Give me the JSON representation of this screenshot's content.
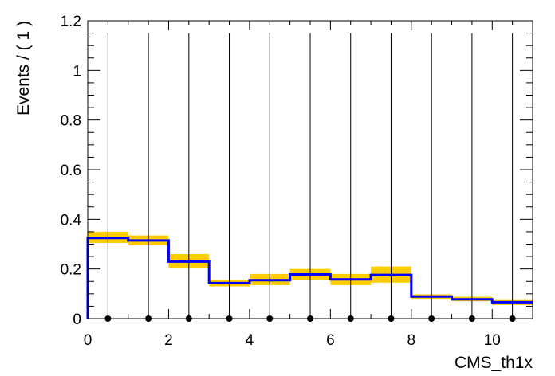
{
  "chart_data": {
    "type": "bar",
    "title": "",
    "xlabel": "CMS_th1x",
    "ylabel": "Events / ( 1 )",
    "xlim": [
      0,
      11
    ],
    "ylim": [
      0,
      1.2
    ],
    "x_ticks": [
      "0",
      "2",
      "4",
      "6",
      "8",
      "10"
    ],
    "y_ticks": [
      "0",
      "0.2",
      "0.4",
      "0.6",
      "0.8",
      "1",
      "1.2"
    ],
    "bin_edges": [
      0,
      1,
      2,
      3,
      4,
      5,
      6,
      7,
      8,
      9,
      10,
      11
    ],
    "series": [
      {
        "kind": "uncertainty-band",
        "color": "#ffcc00",
        "low": [
          0.305,
          0.295,
          0.205,
          0.13,
          0.135,
          0.155,
          0.135,
          0.145,
          0.08,
          0.07,
          0.055
        ],
        "high": [
          0.35,
          0.335,
          0.26,
          0.155,
          0.18,
          0.2,
          0.18,
          0.21,
          0.098,
          0.088,
          0.078
        ]
      },
      {
        "kind": "step-line",
        "color": "#0000ff",
        "values": [
          0.325,
          0.315,
          0.23,
          0.143,
          0.155,
          0.178,
          0.158,
          0.176,
          0.089,
          0.078,
          0.066
        ]
      },
      {
        "kind": "points-with-errors",
        "color": "#000000",
        "x": [
          0.5,
          1.5,
          2.5,
          3.5,
          4.5,
          5.5,
          6.5,
          7.5,
          8.5,
          9.5,
          10.5
        ],
        "y": [
          0,
          0,
          0,
          0,
          0,
          0,
          0,
          0,
          0,
          0,
          0
        ],
        "err_high": [
          1.15,
          1.15,
          1.15,
          1.15,
          1.15,
          1.15,
          1.15,
          1.15,
          1.15,
          1.15,
          1.15
        ]
      }
    ],
    "grid": false,
    "legend": "none"
  }
}
